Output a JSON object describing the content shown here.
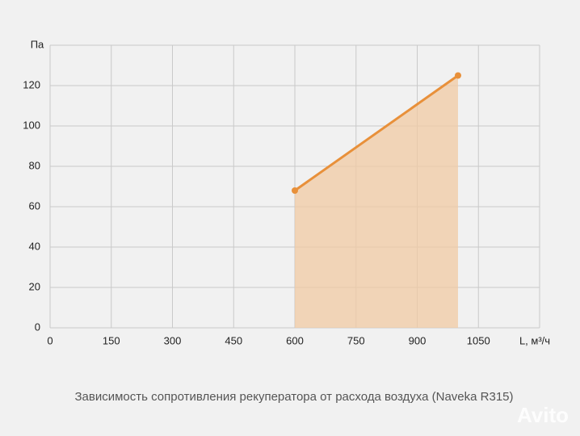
{
  "chart_data": {
    "type": "line",
    "title": "Зависимость сопротивления рекуператора от расхода воздуха (Naveka R315)",
    "x_label": "L, м³/ч",
    "y_label": "Па",
    "x": [
      600,
      1000
    ],
    "series": [
      {
        "name": "R315",
        "color": "#e8903a",
        "values": [
          68,
          125
        ]
      }
    ],
    "area_color": "#f0c9a3",
    "xlim": [
      0,
      1200
    ],
    "xticks": [
      0,
      150,
      300,
      450,
      600,
      750,
      900,
      1050
    ],
    "ylim": [
      0,
      140
    ],
    "yticks": [
      0,
      20,
      40,
      60,
      80,
      100,
      120
    ],
    "grid": true,
    "watermark": "Avito"
  }
}
